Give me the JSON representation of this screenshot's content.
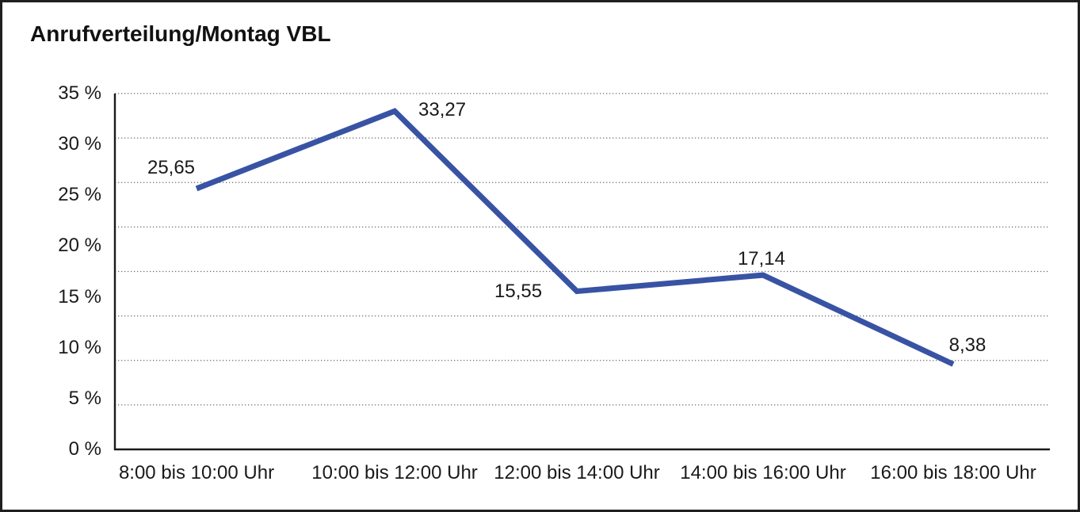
{
  "chart_data": {
    "type": "line",
    "title": "Anrufverteilung/Montag VBL",
    "categories": [
      "8:00 bis 10:00 Uhr",
      "10:00 bis 12:00 Uhr",
      "12:00 bis 14:00 Uhr",
      "14:00 bis 16:00 Uhr",
      "16:00 bis 18:00 Uhr"
    ],
    "values": [
      25.65,
      33.27,
      15.55,
      17.14,
      8.38
    ],
    "point_labels": [
      "25,65",
      "33,27",
      "15,55",
      "17,14",
      "8,38"
    ],
    "xlabel": "",
    "ylabel": "",
    "ylim": [
      0,
      35
    ],
    "y_ticks": [
      35,
      30,
      25,
      20,
      15,
      10,
      5,
      0
    ],
    "y_tick_labels": [
      "35 %",
      "30 %",
      "25 %",
      "20 %",
      "15 %",
      "10 %",
      "5 %",
      "0 %"
    ],
    "grid": "horizontal-dotted",
    "legend": "none",
    "colors": {
      "line": "#3853A4",
      "text": "#1a1a1a",
      "grid": "#6e6e6e",
      "axis": "#1a1a1a",
      "frame": "#1f1f1f",
      "background": "#ffffff"
    }
  }
}
